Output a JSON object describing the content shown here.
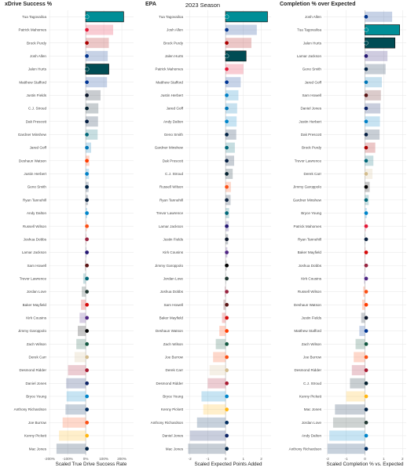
{
  "suptitle": "2023 Season",
  "colors": {
    "grid": "#e6e6e6",
    "zero": "#bdbdbd",
    "highlight_stroke": "#111111"
  },
  "chart_data": [
    {
      "type": "bar",
      "orientation": "horizontal",
      "title": "xDrive Success %",
      "xlabel": "Scaled True Drive Success Rate",
      "xlim": [
        -205,
        265
      ],
      "xticks": [
        -200,
        -100,
        0,
        100,
        200
      ],
      "xticklabels": [
        "-200%",
        "-100%",
        "0%",
        "100%",
        "200%"
      ],
      "grid": true,
      "categories": [
        "Tua Tagovailoa",
        "Patrick Mahomes",
        "Brock Purdy",
        "Josh Allen",
        "Jalen Hurts",
        "Matthew Stafford",
        "Justin Fields",
        "C.J. Stroud",
        "Dak Prescott",
        "Gardner Minshew",
        "Jared Goff",
        "Deshaun Watson",
        "Justin Herbert",
        "Geno Smith",
        "Ryan Tannehill",
        "Andy Dalton",
        "Russell Wilson",
        "Joshua Dobbs",
        "Lamar Jackson",
        "Sam Howell",
        "Trevor Lawrence",
        "Jordan Love",
        "Baker Mayfield",
        "Kirk Cousins",
        "Jimmy Garoppolo",
        "Zach Wilson",
        "Derek Carr",
        "Desmond Ridder",
        "Daniel Jones",
        "Bryce Young",
        "Anthony Richardson",
        "Joe Burrow",
        "Kenny Pickett",
        "Mac Jones"
      ],
      "values": [
        210,
        152,
        128,
        122,
        128,
        118,
        82,
        70,
        68,
        66,
        30,
        20,
        18,
        16,
        13,
        8,
        6,
        4,
        3,
        -4,
        -14,
        -22,
        -26,
        -34,
        -44,
        -52,
        -62,
        -98,
        -108,
        -106,
        -112,
        -128,
        -148,
        -162
      ],
      "colors": [
        "#008E97",
        "#E31837",
        "#AA0000",
        "#00338D",
        "#004C54",
        "#003594",
        "#0B162A",
        "#03202F",
        "#041E42",
        "#006778",
        "#0076B6",
        "#FF3C00",
        "#0080C6",
        "#002244",
        "#0C2340",
        "#0085CA",
        "#FB4F14",
        "#97233F",
        "#241773",
        "#5A1414",
        "#006778",
        "#203731",
        "#D50A0A",
        "#4F2683",
        "#000000",
        "#125740",
        "#D3BC8D",
        "#A71930",
        "#0B2265",
        "#0085CA",
        "#002C5F",
        "#FB4F14",
        "#FFB612",
        "#002244"
      ],
      "highlight": [
        "Tua Tagovailoa",
        "Jalen Hurts"
      ]
    },
    {
      "type": "bar",
      "orientation": "horizontal",
      "title": "EPA",
      "xlabel": "Scaled Expected Points Added",
      "xlim": [
        -2.25,
        2.55
      ],
      "xticks": [
        -2,
        -1,
        0,
        1,
        2
      ],
      "xticklabels": [
        "-2",
        "-1",
        "0",
        "1",
        "2"
      ],
      "grid": true,
      "categories": [
        "Tua Tagovailoa",
        "Josh Allen",
        "Brock Purdy",
        "Jalen Hurts",
        "Patrick Mahomes",
        "Matthew Stafford",
        "Justin Herbert",
        "Jared Goff",
        "Andy Dalton",
        "Geno Smith",
        "Gardner Minshew",
        "Dak Prescott",
        "C.J. Stroud",
        "Russell Wilson",
        "Ryan Tannehill",
        "Trevor Lawrence",
        "Lamar Jackson",
        "Justin Fields",
        "Kirk Cousins",
        "Jimmy Garoppolo",
        "Jordan Love",
        "Joshua Dobbs",
        "Sam Howell",
        "Baker Mayfield",
        "Deshaun Watson",
        "Zach Wilson",
        "Joe Burrow",
        "Derek Carr",
        "Desmond Ridder",
        "Bryce Young",
        "Kenny Pickett",
        "Anthony Richardson",
        "Daniel Jones",
        "Mac Jones"
      ],
      "values": [
        2.35,
        1.75,
        1.45,
        1.15,
        1.0,
        0.85,
        0.72,
        0.65,
        0.62,
        0.6,
        0.52,
        0.48,
        0.4,
        0.3,
        0.28,
        0.2,
        0.18,
        0.14,
        0.1,
        0.06,
        0.02,
        -0.05,
        -0.12,
        -0.2,
        -0.35,
        -0.55,
        -0.7,
        -0.9,
        -1.0,
        -1.35,
        -1.25,
        -1.6,
        -2.0,
        -2.1
      ],
      "colors": [
        "#008E97",
        "#00338D",
        "#AA0000",
        "#004C54",
        "#E31837",
        "#003594",
        "#0080C6",
        "#0076B6",
        "#0085CA",
        "#002244",
        "#006778",
        "#041E42",
        "#03202F",
        "#FB4F14",
        "#0C2340",
        "#006778",
        "#241773",
        "#0B162A",
        "#4F2683",
        "#000000",
        "#203731",
        "#97233F",
        "#5A1414",
        "#D50A0A",
        "#FF3C00",
        "#125740",
        "#FB4F14",
        "#D3BC8D",
        "#A71930",
        "#0085CA",
        "#FFB612",
        "#002C5F",
        "#0B2265",
        "#002244"
      ],
      "highlight": [
        "Tua Tagovailoa",
        "Jalen Hurts"
      ]
    },
    {
      "type": "bar",
      "orientation": "horizontal",
      "title": "Completion % over Expected",
      "xlabel": "Scaled Completion % vs. Expected",
      "xlim": [
        -2.2,
        2.2
      ],
      "xticks": [
        -2,
        -1,
        0,
        1,
        2
      ],
      "xticklabels": [
        "-2",
        "-1",
        "0",
        "1",
        "2"
      ],
      "grid": true,
      "categories": [
        "Josh Allen",
        "Tua Tagovailoa",
        "Jalen Hurts",
        "Lamar Jackson",
        "Geno Smith",
        "Jared Goff",
        "Sam Howell",
        "Daniel Jones",
        "Justin Herbert",
        "Dak Prescott",
        "Brock Purdy",
        "Trevor Lawrence",
        "Derek Carr",
        "Jimmy Garoppolo",
        "Gardner Minshew",
        "Bryce Young",
        "Patrick Mahomes",
        "Ryan Tannehill",
        "Baker Mayfield",
        "Joshua Dobbs",
        "Kirk Cousins",
        "Russell Wilson",
        "Deshaun Watson",
        "Justin Fields",
        "Matthew Stafford",
        "Zach Wilson",
        "Joe Burrow",
        "Desmond Ridder",
        "C.J. Stroud",
        "Kenny Pickett",
        "Mac Jones",
        "Jordan Love",
        "Andy Dalton",
        "Anthony Richardson"
      ],
      "values": [
        1.45,
        1.85,
        1.6,
        1.2,
        1.1,
        0.9,
        0.85,
        0.82,
        0.8,
        0.78,
        0.55,
        0.45,
        0.4,
        0.25,
        0.2,
        0.1,
        0.05,
        0.02,
        0.0,
        -0.02,
        -0.05,
        -0.1,
        -0.15,
        -0.2,
        -0.3,
        -0.5,
        -0.6,
        -0.7,
        -0.8,
        -1.0,
        -1.6,
        -1.7,
        -1.9,
        -2.0
      ],
      "colors": [
        "#00338D",
        "#008E97",
        "#004C54",
        "#241773",
        "#002244",
        "#0076B6",
        "#5A1414",
        "#0B2265",
        "#0080C6",
        "#041E42",
        "#AA0000",
        "#006778",
        "#D3BC8D",
        "#000000",
        "#006778",
        "#0085CA",
        "#E31837",
        "#0C2340",
        "#D50A0A",
        "#97233F",
        "#4F2683",
        "#FB4F14",
        "#FF3C00",
        "#0B162A",
        "#003594",
        "#125740",
        "#FB4F14",
        "#A71930",
        "#03202F",
        "#FFB612",
        "#002244",
        "#203731",
        "#0085CA",
        "#002C5F"
      ],
      "highlight": [
        "Tua Tagovailoa",
        "Jalen Hurts"
      ]
    }
  ]
}
